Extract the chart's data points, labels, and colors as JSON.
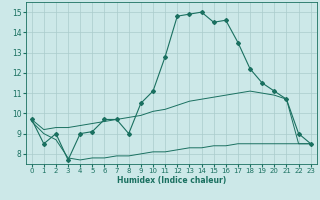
{
  "xlabel": "Humidex (Indice chaleur)",
  "xlim": [
    -0.5,
    23.5
  ],
  "ylim": [
    7.5,
    15.5
  ],
  "xticks": [
    0,
    1,
    2,
    3,
    4,
    5,
    6,
    7,
    8,
    9,
    10,
    11,
    12,
    13,
    14,
    15,
    16,
    17,
    18,
    19,
    20,
    21,
    22,
    23
  ],
  "yticks": [
    8,
    9,
    10,
    11,
    12,
    13,
    14,
    15
  ],
  "background_color": "#cce8e8",
  "grid_color": "#aacccc",
  "line_color": "#1a7060",
  "line1_x": [
    0,
    1,
    2,
    3,
    4,
    5,
    6,
    7,
    8,
    9,
    10,
    11,
    12,
    13,
    14,
    15,
    16,
    17,
    18,
    19,
    20,
    21,
    22,
    23
  ],
  "line1_y": [
    9.7,
    8.5,
    9.0,
    7.7,
    9.0,
    9.1,
    9.7,
    9.7,
    9.0,
    10.5,
    11.1,
    12.8,
    14.8,
    14.9,
    15.0,
    14.5,
    14.6,
    13.5,
    12.2,
    11.5,
    11.1,
    10.7,
    9.0,
    8.5
  ],
  "line2_x": [
    0,
    1,
    2,
    3,
    4,
    5,
    6,
    7,
    8,
    9,
    10,
    11,
    12,
    13,
    14,
    15,
    16,
    17,
    18,
    19,
    20,
    21,
    22,
    23
  ],
  "line2_y": [
    9.7,
    9.2,
    9.3,
    9.3,
    9.4,
    9.5,
    9.6,
    9.7,
    9.8,
    9.9,
    10.1,
    10.2,
    10.4,
    10.6,
    10.7,
    10.8,
    10.9,
    11.0,
    11.1,
    11.0,
    10.9,
    10.7,
    8.5,
    8.5
  ],
  "line3_x": [
    0,
    1,
    2,
    3,
    4,
    5,
    6,
    7,
    8,
    9,
    10,
    11,
    12,
    13,
    14,
    15,
    16,
    17,
    18,
    19,
    20,
    21,
    22,
    23
  ],
  "line3_y": [
    9.6,
    9.0,
    8.7,
    7.8,
    7.7,
    7.8,
    7.8,
    7.9,
    7.9,
    8.0,
    8.1,
    8.1,
    8.2,
    8.3,
    8.3,
    8.4,
    8.4,
    8.5,
    8.5,
    8.5,
    8.5,
    8.5,
    8.5,
    8.5
  ]
}
